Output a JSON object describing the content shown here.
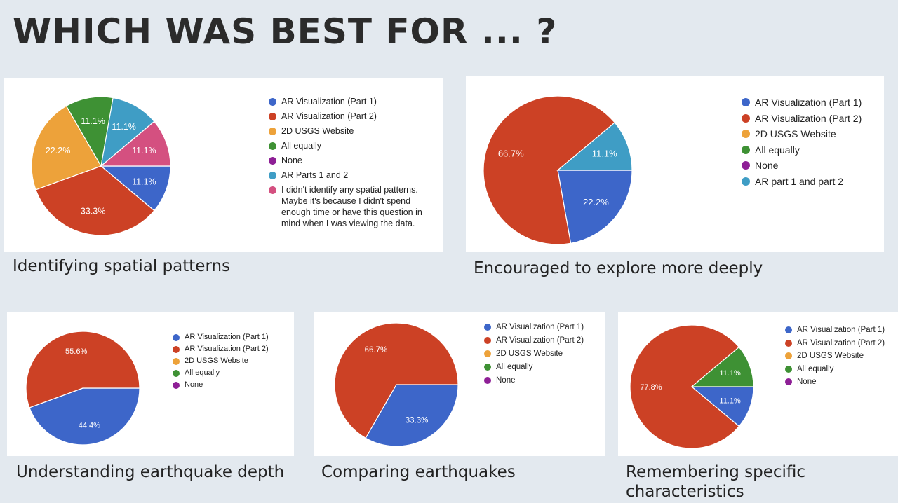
{
  "title": "WHICH WAS BEST FOR ... ?",
  "colors": {
    "ar1": "#3d66c9",
    "ar2": "#cc4125",
    "usgs": "#eda23a",
    "equal": "#3e9134",
    "none": "#8e1f96",
    "both": "#3f9dc5",
    "nopattern": "#d45080"
  },
  "chart_data": [
    {
      "type": "pie",
      "caption": "Identifying spatial patterns",
      "legend": [
        {
          "label": "AR Visualization (Part 1)",
          "color": "#3d66c9"
        },
        {
          "label": "AR Visualization (Part 2)",
          "color": "#cc4125"
        },
        {
          "label": "2D USGS Website",
          "color": "#eda23a"
        },
        {
          "label": "All equally",
          "color": "#3e9134"
        },
        {
          "label": "None",
          "color": "#8e1f96"
        },
        {
          "label": "AR Parts 1 and 2",
          "color": "#3f9dc5"
        },
        {
          "label": "I didn't identify any spatial patterns. Maybe it's because I didn't spend enough time or have this question in mind when I was viewing the data.",
          "color": "#d45080"
        }
      ],
      "slices": [
        {
          "label": "AR Visualization (Part 1)",
          "value": 11.1,
          "text": "11.1%",
          "color": "#3d66c9"
        },
        {
          "label": "AR Visualization (Part 2)",
          "value": 33.3,
          "text": "33.3%",
          "color": "#cc4125"
        },
        {
          "label": "2D USGS Website",
          "value": 22.2,
          "text": "22.2%",
          "color": "#eda23a"
        },
        {
          "label": "All equally",
          "value": 11.1,
          "text": "11.1%",
          "color": "#3e9134"
        },
        {
          "label": "AR Parts 1 and 2",
          "value": 11.1,
          "text": "11.1%",
          "color": "#3f9dc5"
        },
        {
          "label": "I didn't identify any spatial patterns.",
          "value": 11.1,
          "text": "11.1%",
          "color": "#d45080"
        }
      ]
    },
    {
      "type": "pie",
      "caption": "Encouraged to explore more deeply",
      "legend": [
        {
          "label": "AR Visualization (Part 1)",
          "color": "#3d66c9"
        },
        {
          "label": "AR Visualization (Part 2)",
          "color": "#cc4125"
        },
        {
          "label": "2D USGS Website",
          "color": "#eda23a"
        },
        {
          "label": "All equally",
          "color": "#3e9134"
        },
        {
          "label": "None",
          "color": "#8e1f96"
        },
        {
          "label": "AR part 1 and part 2",
          "color": "#3f9dc5"
        }
      ],
      "slices": [
        {
          "label": "AR Visualization (Part 1)",
          "value": 22.2,
          "text": "22.2%",
          "color": "#3d66c9"
        },
        {
          "label": "AR Visualization (Part 2)",
          "value": 66.7,
          "text": "66.7%",
          "color": "#cc4125"
        },
        {
          "label": "AR part 1 and part 2",
          "value": 11.1,
          "text": "11.1%",
          "color": "#3f9dc5"
        }
      ]
    },
    {
      "type": "pie",
      "caption": "Understanding earthquake depth",
      "legend": [
        {
          "label": "AR Visualization (Part 1)",
          "color": "#3d66c9"
        },
        {
          "label": "AR Visualization (Part 2)",
          "color": "#cc4125"
        },
        {
          "label": "2D USGS Website",
          "color": "#eda23a"
        },
        {
          "label": "All equally",
          "color": "#3e9134"
        },
        {
          "label": "None",
          "color": "#8e1f96"
        }
      ],
      "slices": [
        {
          "label": "AR Visualization (Part 1)",
          "value": 44.4,
          "text": "44.4%",
          "color": "#3d66c9"
        },
        {
          "label": "AR Visualization (Part 2)",
          "value": 55.6,
          "text": "55.6%",
          "color": "#cc4125"
        }
      ]
    },
    {
      "type": "pie",
      "caption": "Comparing earthquakes",
      "legend": [
        {
          "label": "AR Visualization (Part 1)",
          "color": "#3d66c9"
        },
        {
          "label": "AR Visualization (Part 2)",
          "color": "#cc4125"
        },
        {
          "label": "2D USGS Website",
          "color": "#eda23a"
        },
        {
          "label": "All equally",
          "color": "#3e9134"
        },
        {
          "label": "None",
          "color": "#8e1f96"
        }
      ],
      "slices": [
        {
          "label": "AR Visualization (Part 1)",
          "value": 33.3,
          "text": "33.3%",
          "color": "#3d66c9"
        },
        {
          "label": "AR Visualization (Part 2)",
          "value": 66.7,
          "text": "66.7%",
          "color": "#cc4125"
        }
      ]
    },
    {
      "type": "pie",
      "caption": "Remembering specific characteristics",
      "legend": [
        {
          "label": "AR Visualization (Part 1)",
          "color": "#3d66c9"
        },
        {
          "label": "AR Visualization (Part 2)",
          "color": "#cc4125"
        },
        {
          "label": "2D USGS Website",
          "color": "#eda23a"
        },
        {
          "label": "All equally",
          "color": "#3e9134"
        },
        {
          "label": "None",
          "color": "#8e1f96"
        }
      ],
      "slices": [
        {
          "label": "AR Visualization (Part 1)",
          "value": 11.1,
          "text": "11.1%",
          "color": "#3d66c9"
        },
        {
          "label": "AR Visualization (Part 2)",
          "value": 77.8,
          "text": "77.8%",
          "color": "#cc4125"
        },
        {
          "label": "All equally",
          "value": 11.1,
          "text": "11.1%",
          "color": "#3e9134"
        }
      ]
    }
  ]
}
